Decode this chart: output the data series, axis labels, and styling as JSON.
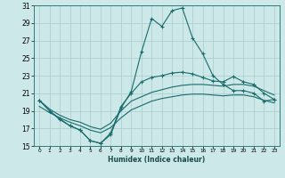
{
  "xlabel": "Humidex (Indice chaleur)",
  "background_color": "#cce8e8",
  "grid_color": "#aacccc",
  "line_color": "#1a6b6b",
  "xlim": [
    -0.5,
    23.5
  ],
  "ylim": [
    15,
    31
  ],
  "xticks": [
    0,
    1,
    2,
    3,
    4,
    5,
    6,
    7,
    8,
    9,
    10,
    11,
    12,
    13,
    14,
    15,
    16,
    17,
    18,
    19,
    20,
    21,
    22,
    23
  ],
  "yticks": [
    15,
    17,
    19,
    21,
    23,
    25,
    27,
    29,
    31
  ],
  "line1_x": [
    0,
    1,
    2,
    3,
    4,
    5,
    6,
    7,
    8,
    9,
    10,
    11,
    12,
    13,
    14,
    15,
    16,
    17,
    18,
    19,
    20,
    21,
    22,
    23
  ],
  "line1_y": [
    20.2,
    19.0,
    18.0,
    17.3,
    16.8,
    15.6,
    15.3,
    16.3,
    19.3,
    21.2,
    25.7,
    29.5,
    28.6,
    30.4,
    30.7,
    27.3,
    25.5,
    23.0,
    22.0,
    21.3,
    21.3,
    21.0,
    20.1,
    20.3
  ],
  "line2_x": [
    0,
    1,
    2,
    3,
    4,
    5,
    6,
    7,
    8,
    9,
    10,
    11,
    12,
    13,
    14,
    15,
    16,
    17,
    18,
    19,
    20,
    21,
    22,
    23
  ],
  "line2_y": [
    20.2,
    19.0,
    18.1,
    17.3,
    16.8,
    15.6,
    15.3,
    16.5,
    19.5,
    21.0,
    22.3,
    22.8,
    23.0,
    23.3,
    23.4,
    23.2,
    22.8,
    22.4,
    22.3,
    22.9,
    22.3,
    22.0,
    21.0,
    20.3
  ],
  "line3_x": [
    0,
    1,
    2,
    3,
    4,
    5,
    6,
    7,
    8,
    9,
    10,
    11,
    12,
    13,
    14,
    15,
    16,
    17,
    18,
    19,
    20,
    21,
    22,
    23
  ],
  "line3_y": [
    20.2,
    19.2,
    18.5,
    18.0,
    17.7,
    17.2,
    16.9,
    17.6,
    19.0,
    20.1,
    20.6,
    21.1,
    21.4,
    21.7,
    21.9,
    22.0,
    22.0,
    21.9,
    21.8,
    22.0,
    22.0,
    21.8,
    21.3,
    20.8
  ],
  "line4_x": [
    0,
    1,
    2,
    3,
    4,
    5,
    6,
    7,
    8,
    9,
    10,
    11,
    12,
    13,
    14,
    15,
    16,
    17,
    18,
    19,
    20,
    21,
    22,
    23
  ],
  "line4_y": [
    19.5,
    18.8,
    18.2,
    17.7,
    17.3,
    16.8,
    16.5,
    17.1,
    18.2,
    19.1,
    19.6,
    20.1,
    20.4,
    20.6,
    20.8,
    20.9,
    20.9,
    20.8,
    20.7,
    20.8,
    20.8,
    20.6,
    20.2,
    19.9
  ]
}
